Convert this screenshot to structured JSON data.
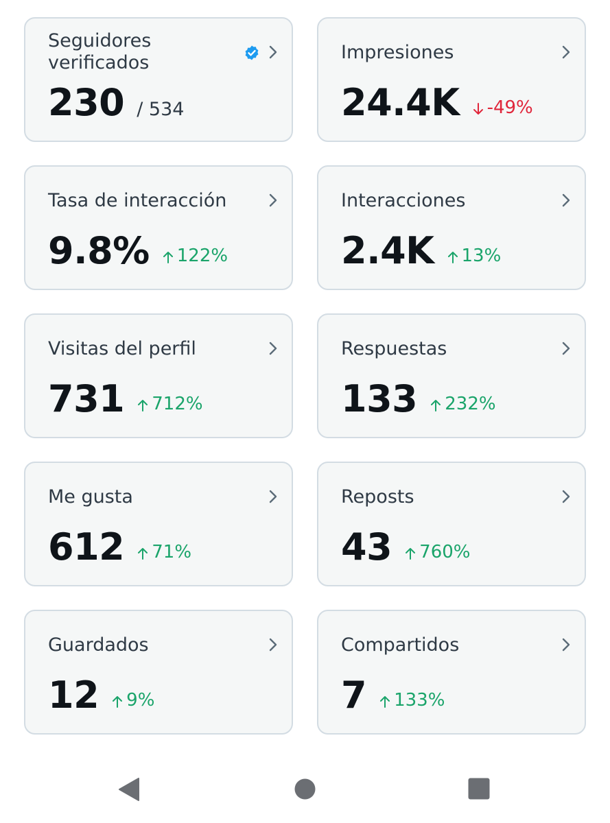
{
  "cards": [
    {
      "title": "Seguidores verificados",
      "value": "230",
      "total": "/ 534",
      "change": "",
      "direction": "",
      "verified_icon": "verified-badge-icon"
    },
    {
      "title": "Impresiones",
      "value": "24.4K",
      "total": "",
      "change": "-49%",
      "direction": "down"
    },
    {
      "title": "Tasa de interacción",
      "value": "9.8%",
      "total": "",
      "change": "122%",
      "direction": "up"
    },
    {
      "title": "Interacciones",
      "value": "2.4K",
      "total": "",
      "change": "13%",
      "direction": "up"
    },
    {
      "title": "Visitas del perfil",
      "value": "731",
      "total": "",
      "change": "712%",
      "direction": "up"
    },
    {
      "title": "Respuestas",
      "value": "133",
      "total": "",
      "change": "232%",
      "direction": "up"
    },
    {
      "title": "Me gusta",
      "value": "612",
      "total": "",
      "change": "71%",
      "direction": "up"
    },
    {
      "title": "Reposts",
      "value": "43",
      "total": "",
      "change": "760%",
      "direction": "up"
    },
    {
      "title": "Guardados",
      "value": "12",
      "total": "",
      "change": "9%",
      "direction": "up"
    },
    {
      "title": "Compartidos",
      "value": "7",
      "total": "",
      "change": "133%",
      "direction": "up"
    }
  ],
  "colors": {
    "up": "#1aa46a",
    "down": "#e0263b",
    "verified": "#1d9bf0"
  },
  "navbar": {
    "back_icon": "back-triangle-icon",
    "home_icon": "home-circle-icon",
    "recents_icon": "recents-square-icon"
  }
}
